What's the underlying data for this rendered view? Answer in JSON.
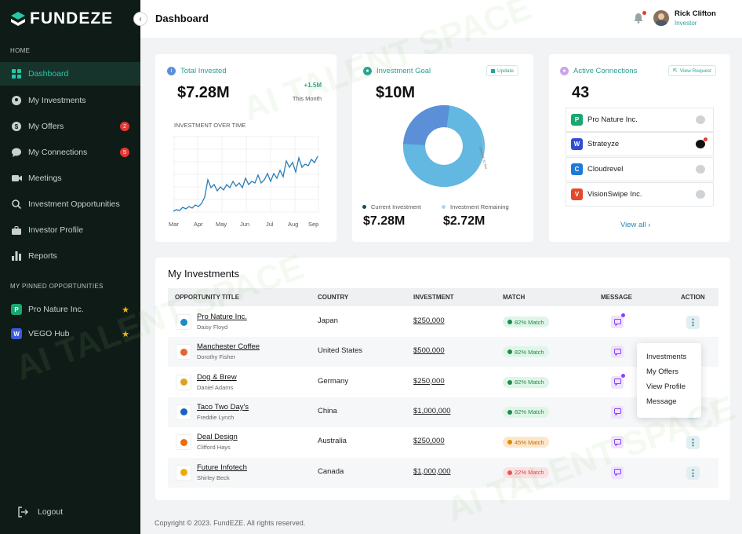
{
  "app": {
    "logo_text": "FUNDEZE",
    "page_title": "Dashboard"
  },
  "user": {
    "name": "Rick Clifton",
    "role": "Investor"
  },
  "sidebar": {
    "home_label": "HOME",
    "items": [
      {
        "label": "Dashboard",
        "icon": "grid-icon"
      },
      {
        "label": "My Investments",
        "icon": "investment-icon"
      },
      {
        "label": "My Offers",
        "icon": "dollar-icon",
        "badge": "2"
      },
      {
        "label": "My Connections",
        "icon": "chat-icon",
        "badge": "5"
      },
      {
        "label": "Meetings",
        "icon": "video-icon"
      },
      {
        "label": "Investment Opportunities",
        "icon": "search-icon"
      },
      {
        "label": "Investor Profile",
        "icon": "briefcase-icon"
      },
      {
        "label": "Reports",
        "icon": "bar-chart-icon"
      }
    ],
    "pinned_label": "MY PINNED OPPORTUNITIES",
    "pinned": [
      {
        "label": "Pro Nature Inc.",
        "color": "#1aa870"
      },
      {
        "label": "VEGO Hub",
        "color": "#3b5bdb"
      }
    ],
    "logout_label": "Logout"
  },
  "total_invested": {
    "title": "Total Invested",
    "value": "$7.28M",
    "delta": "+1.5M",
    "delta_period": "This Month",
    "chart_title": "INVESTMENT OVER TIME",
    "x_labels": [
      "Mar",
      "Apr",
      "May",
      "Jun",
      "Jul",
      "Aug",
      "Sep"
    ]
  },
  "investment_goal": {
    "title": "Investment Goal",
    "update_label": "Update",
    "value": "$10M",
    "legend_current": "Current Investment",
    "legend_remaining": "Investment Remaining",
    "current_value": "$7.28M",
    "remaining_value": "$2.72M",
    "ring_note": "Updated: 31 Mar",
    "colors": {
      "current": "#5b8fd8",
      "remaining": "#62b8e0"
    }
  },
  "active_connections": {
    "title": "Active Connections",
    "view_request_label": "View Request",
    "count": "43",
    "items": [
      {
        "name": "Pro Nature Inc.",
        "color": "#1aa870",
        "glyph": "P"
      },
      {
        "name": "Strateyze",
        "color": "#2f4fd1",
        "glyph": "W"
      },
      {
        "name": "Cloudrevel",
        "color": "#1e7ad6",
        "glyph": "C"
      },
      {
        "name": "VisionSwipe Inc.",
        "color": "#e24a2a",
        "glyph": "V"
      }
    ],
    "view_all_label": "View all"
  },
  "investments": {
    "title": "My Investments",
    "headers": [
      "OPPORTUNITY TITLE",
      "COUNTRY",
      "INVESTMENT",
      "MATCH",
      "MESSAGE",
      "ACTION"
    ],
    "rows": [
      {
        "title": "Pro Nature Inc.",
        "person": "Daisy Floyd",
        "country": "Japan",
        "investment": "$250,000",
        "match": "82% Match",
        "level": "green",
        "unread": true,
        "logo_color": "#1e88c9"
      },
      {
        "title": "Manchester Coffee",
        "person": "Dorothy Fisher",
        "country": "United States",
        "investment": "$500,000",
        "match": "82% Match",
        "level": "green",
        "unread": false,
        "logo_color": "#e2662b"
      },
      {
        "title": "Dog & Brew",
        "person": "Daniel Adams",
        "country": "Germany",
        "investment": "$250,000",
        "match": "82% Match",
        "level": "green",
        "unread": true,
        "logo_color": "#e0a020"
      },
      {
        "title": "Taco Two Day's",
        "person": "Freddie Lynch",
        "country": "China",
        "investment": "$1,000,000",
        "match": "82% Match",
        "level": "green",
        "unread": false,
        "logo_color": "#1565c0"
      },
      {
        "title": "Deal Design",
        "person": "Clifford Hays",
        "country": "Australia",
        "investment": "$250,000",
        "match": "45% Match",
        "level": "orange",
        "unread": false,
        "logo_color": "#ef6c00"
      },
      {
        "title": "Future Infotech",
        "person": "Shirley Beck",
        "country": "Canada",
        "investment": "$1,000,000",
        "match": "22% Match",
        "level": "red",
        "unread": false,
        "logo_color": "#f2a900"
      }
    ]
  },
  "row_menu": [
    "Investments",
    "My Offers",
    "View Profile",
    "Message"
  ],
  "footer": "Copyright © 2023. FundEZE. All rights reserved.",
  "watermark": "AI TALENT SPACE"
}
